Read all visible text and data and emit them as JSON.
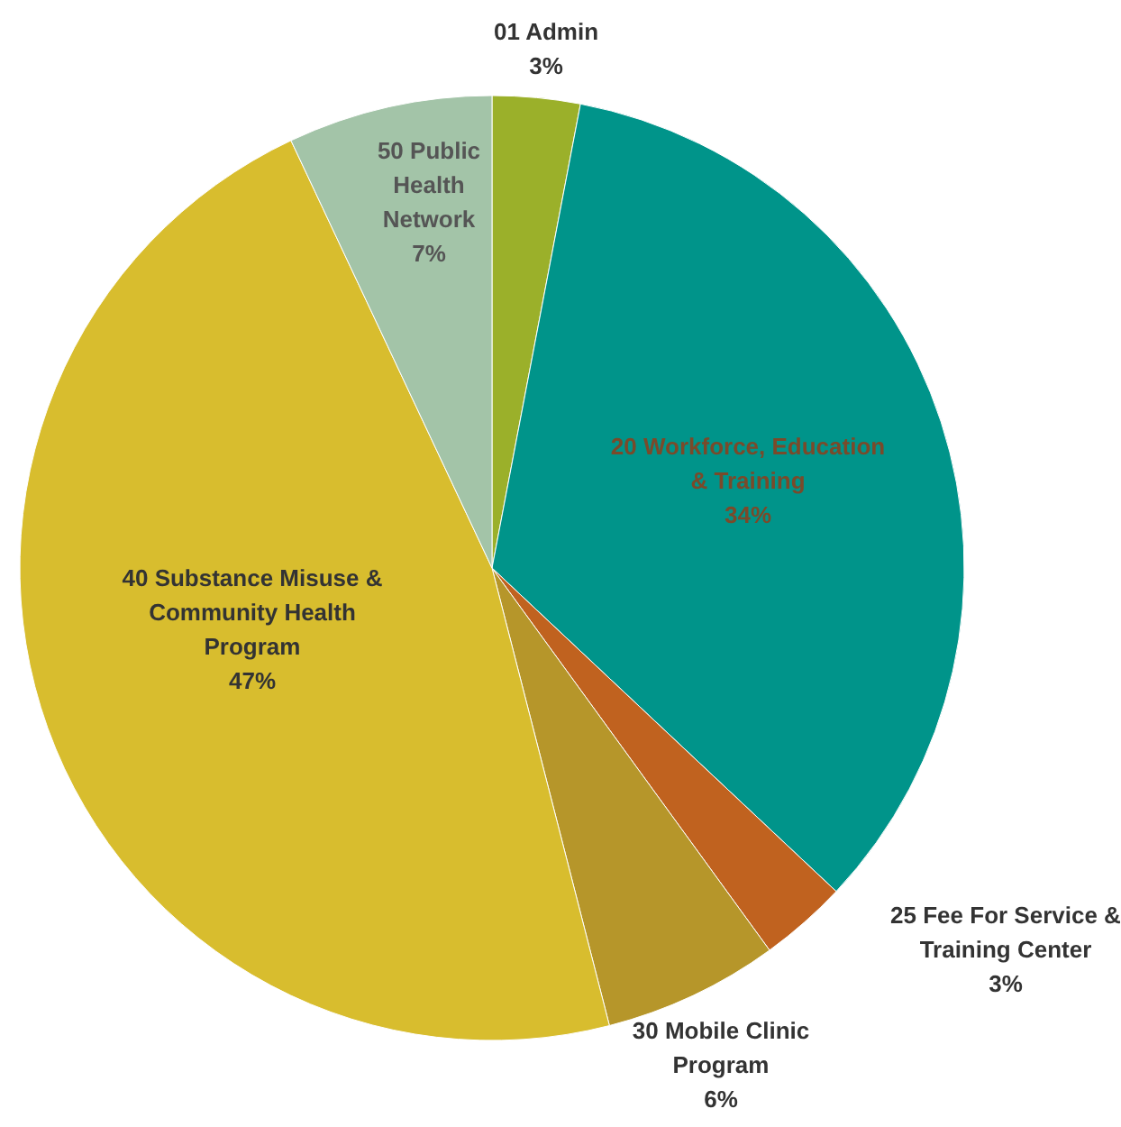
{
  "chart_data": {
    "type": "pie",
    "categories": [
      "01 Admin",
      "20 Workforce, Education & Training",
      "25 Fee For Service & Training Center",
      "30 Mobile Clinic Program",
      "40 Substance Misuse & Community Health Program",
      "50 Public Health Network"
    ],
    "values": [
      3,
      34,
      3,
      6,
      47,
      7
    ],
    "colors": [
      "#9bb02a",
      "#00948a",
      "#c0621f",
      "#b6962a",
      "#d8bd2e",
      "#a3c4a8"
    ],
    "value_labels": [
      "3%",
      "34%",
      "3%",
      "6%",
      "47%",
      "7%"
    ]
  }
}
